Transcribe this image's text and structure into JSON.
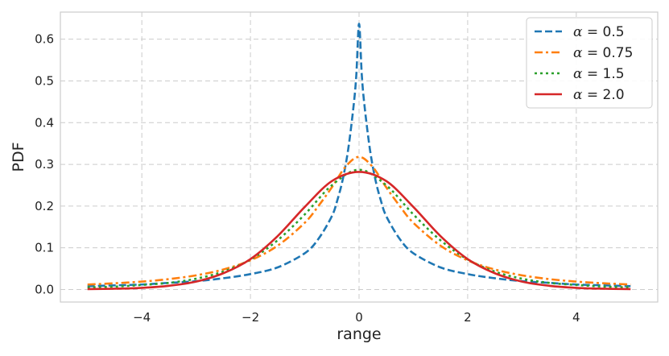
{
  "chart_data": {
    "type": "line",
    "title": "",
    "xlabel": "range",
    "ylabel": "PDF",
    "xlim": [
      -5.5,
      5.5
    ],
    "ylim": [
      -0.03,
      0.665
    ],
    "xticks": [
      -4,
      -2,
      0,
      2,
      4
    ],
    "xtick_labels": [
      "−4",
      "−2",
      "0",
      "2",
      "4"
    ],
    "yticks": [
      0.0,
      0.1,
      0.2,
      0.3,
      0.4,
      0.5,
      0.6
    ],
    "ytick_labels": [
      "0.0",
      "0.1",
      "0.2",
      "0.3",
      "0.4",
      "0.5",
      "0.6"
    ],
    "grid": true,
    "legend_position": "top-right",
    "series": [
      {
        "name_symbol": "α",
        "name_value": " = 0.5",
        "color": "#1f77b4",
        "linestyle": "dashed",
        "x": [
          -5,
          -4.5,
          -4,
          -3.5,
          -3,
          -2.5,
          -2,
          -1.5,
          -1,
          -0.75,
          -0.5,
          -0.4,
          -0.3,
          -0.2,
          -0.1,
          -0.05,
          0,
          0.05,
          0.1,
          0.2,
          0.3,
          0.4,
          0.5,
          0.75,
          1,
          1.5,
          2,
          2.5,
          3,
          3.5,
          4,
          4.5,
          5
        ],
        "y": [
          0.008,
          0.01,
          0.012,
          0.016,
          0.02,
          0.027,
          0.037,
          0.053,
          0.087,
          0.121,
          0.176,
          0.214,
          0.264,
          0.336,
          0.441,
          0.515,
          0.637,
          0.515,
          0.441,
          0.336,
          0.264,
          0.214,
          0.176,
          0.121,
          0.087,
          0.053,
          0.037,
          0.027,
          0.02,
          0.016,
          0.012,
          0.01,
          0.008
        ]
      },
      {
        "name_symbol": "α",
        "name_value": " = 0.75",
        "color": "#ff7f0e",
        "linestyle": "dashdot",
        "x": [
          -5,
          -4.5,
          -4,
          -3.5,
          -3,
          -2.5,
          -2,
          -1.5,
          -1,
          -0.75,
          -0.5,
          -0.25,
          0,
          0.25,
          0.5,
          0.75,
          1,
          1.5,
          2,
          2.5,
          3,
          3.5,
          4,
          4.5,
          5
        ],
        "y": [
          0.012,
          0.015,
          0.019,
          0.025,
          0.034,
          0.048,
          0.07,
          0.105,
          0.16,
          0.2,
          0.245,
          0.294,
          0.318,
          0.294,
          0.245,
          0.2,
          0.16,
          0.105,
          0.07,
          0.048,
          0.034,
          0.025,
          0.019,
          0.015,
          0.012
        ]
      },
      {
        "name_symbol": "α",
        "name_value": " = 1.5",
        "color": "#2ca02c",
        "linestyle": "dotted",
        "x": [
          -5,
          -4.5,
          -4,
          -3.5,
          -3,
          -2.5,
          -2,
          -1.5,
          -1,
          -0.5,
          0,
          0.5,
          1,
          1.5,
          2,
          2.5,
          3,
          3.5,
          4,
          4.5,
          5
        ],
        "y": [
          0.005,
          0.007,
          0.011,
          0.016,
          0.026,
          0.043,
          0.072,
          0.118,
          0.18,
          0.25,
          0.287,
          0.25,
          0.18,
          0.118,
          0.072,
          0.043,
          0.026,
          0.016,
          0.011,
          0.007,
          0.005
        ]
      },
      {
        "name_symbol": "α",
        "name_value": " = 2.0",
        "color": "#d62728",
        "linestyle": "solid",
        "x": [
          -5,
          -4.5,
          -4,
          -3.5,
          -3,
          -2.5,
          -2,
          -1.5,
          -1,
          -0.5,
          0,
          0.5,
          1,
          1.5,
          2,
          2.5,
          3,
          3.5,
          4,
          4.5,
          5
        ],
        "y": [
          0.001,
          0.002,
          0.004,
          0.009,
          0.019,
          0.039,
          0.073,
          0.128,
          0.198,
          0.26,
          0.282,
          0.26,
          0.198,
          0.128,
          0.073,
          0.039,
          0.019,
          0.009,
          0.004,
          0.002,
          0.001
        ]
      }
    ]
  }
}
